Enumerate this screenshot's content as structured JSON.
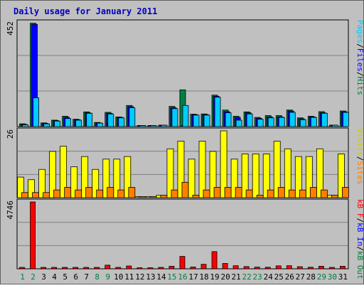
{
  "chart_data": {
    "type": "bar",
    "title": "Daily usage for January 2011",
    "categories": [
      "1",
      "2",
      "3",
      "4",
      "5",
      "6",
      "7",
      "8",
      "9",
      "10",
      "11",
      "12",
      "13",
      "14",
      "15",
      "16",
      "17",
      "18",
      "19",
      "20",
      "21",
      "22",
      "23",
      "24",
      "25",
      "26",
      "27",
      "28",
      "29",
      "30",
      "31"
    ],
    "weekend_days": [
      "1",
      "2",
      "8",
      "9",
      "15",
      "16",
      "22",
      "23",
      "29",
      "30"
    ],
    "panels": [
      {
        "id": "pages-files-hits",
        "ymax_label": "452",
        "ylim": [
          0,
          452
        ],
        "legend": [
          {
            "text": "Pages",
            "color": "#00ccff"
          },
          {
            "text": "/",
            "color": "#000000"
          },
          {
            "text": "Files",
            "color": "#0000ff"
          },
          {
            "text": "/",
            "color": "#000000"
          },
          {
            "text": "Hits",
            "color": "#008040"
          }
        ],
        "series": [
          {
            "name": "Hits",
            "color": "#008040",
            "values": [
              12,
              450,
              16,
              28,
              45,
              32,
              64,
              18,
              62,
              42,
              92,
              0,
              0,
              4,
              88,
              160,
              54,
              55,
              137,
              72,
              45,
              64,
              40,
              48,
              48,
              72,
              38,
              45,
              65,
              3,
              68
            ]
          },
          {
            "name": "Files",
            "color": "#0000ff",
            "values": [
              10,
              445,
              14,
              26,
              40,
              30,
              60,
              16,
              58,
              40,
              87,
              0,
              0,
              3,
              82,
              0,
              52,
              52,
              132,
              65,
              40,
              60,
              36,
              42,
              42,
              68,
              34,
              42,
              60,
              2,
              64
            ]
          },
          {
            "name": "Pages",
            "color": "#00ccff",
            "values": [
              8,
              125,
              12,
              24,
              35,
              28,
              58,
              15,
              55,
              38,
              82,
              0,
              0,
              2,
              78,
              92,
              50,
              50,
              128,
              60,
              28,
              55,
              32,
              38,
              40,
              62,
              30,
              40,
              58,
              2,
              62
            ]
          }
        ]
      },
      {
        "id": "visits-sites",
        "ymax_label": "26",
        "ylim": [
          0,
          26
        ],
        "legend": [
          {
            "text": "Visits",
            "color": "#cccc00"
          },
          {
            "text": "/",
            "color": "#000000"
          },
          {
            "text": "Sites",
            "color": "#ff8000"
          }
        ],
        "series": [
          {
            "name": "Visits",
            "color": "#ffff00",
            "values": [
              8,
              7,
              11,
              18,
              20,
              12,
              16,
              11,
              15,
              15,
              16,
              0,
              0,
              1,
              19,
              22,
              15,
              22,
              18,
              26,
              15,
              17,
              17,
              17,
              22,
              19,
              16,
              16,
              19,
              1,
              17
            ]
          },
          {
            "name": "Sites",
            "color": "#ff8000",
            "values": [
              2,
              2,
              2,
              3,
              4,
              3,
              4,
              3,
              4,
              3,
              4,
              0,
              0,
              1,
              3,
              6,
              1,
              3,
              4,
              4,
              4,
              3,
              1,
              3,
              4,
              3,
              3,
              4,
              3,
              1,
              4
            ]
          }
        ]
      },
      {
        "id": "kbf-kbin-kbout",
        "ymax_label": "4746",
        "ylim": [
          0,
          4746
        ],
        "legend": [
          {
            "text": "kB F",
            "color": "#ff0000"
          },
          {
            "text": "/",
            "color": "#000000"
          },
          {
            "text": "kB In",
            "color": "#0000ff"
          },
          {
            "text": "/",
            "color": "#000000"
          },
          {
            "text": "kB Out",
            "color": "#008040"
          }
        ],
        "series": [
          {
            "name": "kB F",
            "color": "#ff0000",
            "values": [
              60,
              4746,
              50,
              55,
              70,
              60,
              100,
              80,
              260,
              90,
              200,
              0,
              0,
              30,
              180,
              880,
              130,
              320,
              1220,
              380,
              220,
              160,
              120,
              110,
              210,
              220,
              150,
              110,
              180,
              15,
              180
            ]
          }
        ]
      }
    ]
  }
}
